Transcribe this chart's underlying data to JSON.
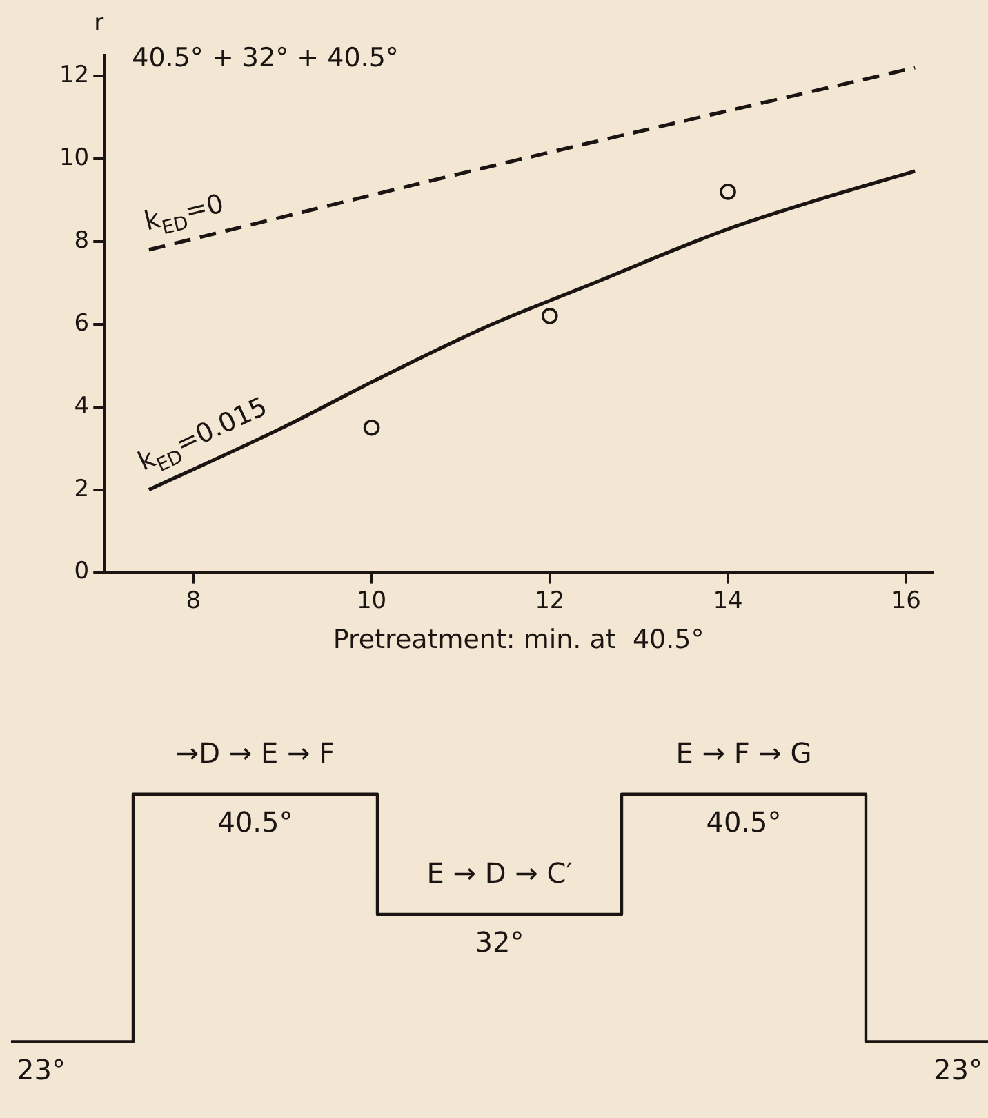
{
  "chart_data": [
    {
      "type": "line",
      "title": "40.5° + 32° + 40.5°",
      "xlabel": "Pretreatment: min. at  40.5°",
      "ylabel": "r",
      "xlim": [
        7,
        16.3
      ],
      "xticks": [
        8,
        10,
        12,
        14,
        16
      ],
      "ylim": [
        0,
        12.5
      ],
      "yticks": [
        0,
        2,
        4,
        6,
        8,
        10,
        12
      ],
      "grid": false,
      "legend": false,
      "series": [
        {
          "name": "k$_{ED}$=0",
          "color": "#1a1512",
          "line_style": "dashed",
          "marker": "none",
          "x": [
            7.5,
            11.6,
            16.1
          ],
          "values": [
            7.8,
            9.95,
            12.2
          ]
        },
        {
          "name": "k$_{ED}$=0.015",
          "color": "#1a1512",
          "line_style": "solid",
          "marker": "none",
          "x": [
            7.5,
            9,
            10,
            11.25,
            12.5,
            14,
            15,
            16.1
          ],
          "values": [
            2.0,
            3.5,
            4.6,
            5.9,
            7.0,
            8.3,
            9.0,
            9.7
          ]
        },
        {
          "type": "scatter",
          "color": "#1a1512",
          "marker": "circle",
          "x": [
            10,
            12,
            14
          ],
          "values": [
            3.5,
            6.2,
            9.2
          ]
        }
      ]
    },
    {
      "type": "step",
      "categories": [
        null,
        null,
        null,
        null,
        null
      ],
      "values": [
        23,
        40.5,
        32,
        40.5,
        23
      ],
      "color": "#1a1512",
      "value_labels": [
        "23°",
        "40.5°",
        "32°",
        "40.5°",
        "23°"
      ],
      "annotations": [
        "→D → E → F",
        "E → D → C′",
        "E → F → G"
      ]
    }
  ]
}
